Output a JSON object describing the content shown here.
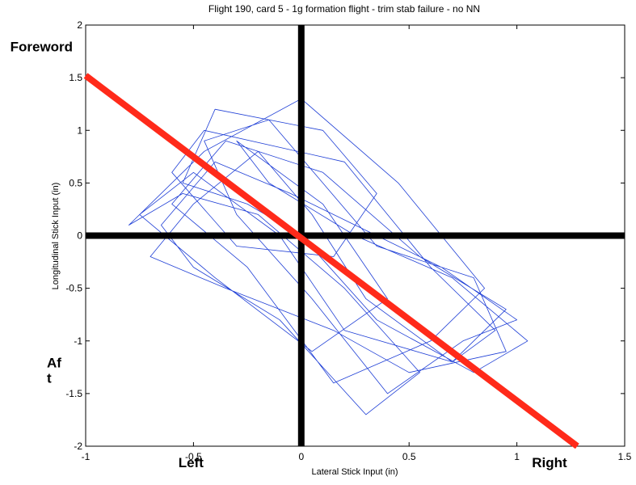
{
  "chart_data": {
    "type": "line",
    "title": "Flight 190, card 5 - 1g formation flight - trim stab failure - no NN",
    "xlabel": "Lateral Stick Input (in)",
    "ylabel": "Longitudinal Stick Input (in)",
    "xlim": [
      -1,
      1.5
    ],
    "ylim": [
      -2,
      2
    ],
    "x_ticks": [
      "-1",
      "-0.5",
      "0",
      "0.5",
      "1",
      "1.5"
    ],
    "y_ticks": [
      "2",
      "1.5",
      "1",
      "0.5",
      "0",
      "-0.5",
      "-1",
      "-1.5",
      "-2"
    ],
    "grid": false,
    "series": [
      {
        "style": "trace",
        "color": "#1f3fd6",
        "x": [
          0.0,
          -0.25,
          -0.55,
          -0.4,
          0.1,
          0.35,
          0.15,
          -0.3,
          -0.6,
          -0.45,
          0.2,
          0.6,
          0.9,
          0.7,
          0.3,
          0.05,
          -0.2,
          -0.5,
          -0.7,
          -0.35,
          0.15,
          0.5,
          0.95,
          0.8,
          0.35,
          0.1,
          -0.15,
          -0.45,
          -0.3,
          0.05,
          0.4,
          0.75,
          1.0,
          0.65,
          0.25,
          -0.05,
          -0.4,
          -0.65,
          -0.5,
          -0.1,
          0.3,
          0.55,
          0.2,
          -0.2,
          -0.55,
          -0.8,
          -0.45,
          0.0,
          0.45,
          0.85,
          0.6,
          0.15,
          -0.25,
          -0.6,
          -0.35,
          0.1,
          0.55,
          0.95,
          0.7,
          0.2,
          -0.1,
          -0.5,
          -0.75,
          -0.4,
          0.05,
          0.4,
          0.1,
          -0.3,
          -0.15,
          0.25,
          0.7,
          1.05,
          0.8,
          0.35,
          0.0
        ],
        "y": [
          0.0,
          0.3,
          0.5,
          1.2,
          1.0,
          0.4,
          -0.2,
          -0.1,
          0.6,
          1.0,
          0.7,
          -0.3,
          -0.9,
          -1.2,
          -0.6,
          0.2,
          0.8,
          0.3,
          -0.2,
          -0.5,
          -0.9,
          -1.3,
          -1.1,
          -0.4,
          -0.1,
          0.5,
          1.1,
          0.9,
          0.2,
          -0.6,
          -1.5,
          -1.0,
          -0.8,
          -0.3,
          0.1,
          0.4,
          0.7,
          0.1,
          -0.3,
          -0.8,
          -1.7,
          -1.3,
          -0.5,
          0.2,
          0.4,
          0.1,
          0.8,
          1.3,
          0.5,
          -0.5,
          -1.0,
          -1.4,
          -0.3,
          0.3,
          0.9,
          0.6,
          -0.2,
          -0.7,
          -1.2,
          -0.9,
          0.0,
          0.6,
          0.2,
          -0.4,
          -1.1,
          -0.6,
          0.3,
          0.9,
          0.5,
          0.0,
          -0.4,
          -1.0,
          -1.3,
          -0.8,
          0.0
        ]
      },
      {
        "style": "thick",
        "color": "#000000",
        "x": [
          -1.0,
          1.5
        ],
        "y": [
          0.0,
          0.0
        ]
      },
      {
        "style": "thick",
        "color": "#000000",
        "x": [
          0.0,
          0.0
        ],
        "y": [
          2.0,
          -2.0
        ]
      },
      {
        "style": "thick",
        "color": "#ff2a1a",
        "x": [
          -1.0,
          1.28
        ],
        "y": [
          1.52,
          -2.0
        ]
      }
    ],
    "annotations": [
      {
        "id": "foreword",
        "text": "Foreword",
        "x": -1.35,
        "y": 1.75
      },
      {
        "id": "aft",
        "text": "Af\nt",
        "x": -1.18,
        "y": -1.25
      },
      {
        "id": "left",
        "text": "Left",
        "x": -0.57,
        "y": -2.2
      },
      {
        "id": "right",
        "text": "Right",
        "x": 1.07,
        "y": -2.2
      }
    ]
  }
}
